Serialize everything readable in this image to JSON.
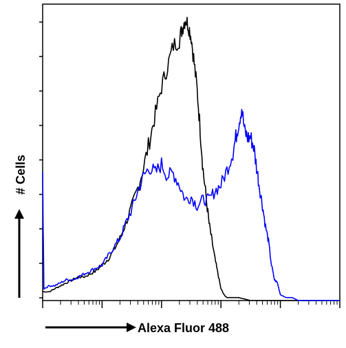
{
  "chart_data": {
    "type": "line",
    "title": "",
    "xlabel": "Alexa Fluor 488",
    "ylabel": "# Cells",
    "x_scale": "log",
    "xlim": [
      1,
      100000
    ],
    "ylim": [
      0,
      100
    ],
    "grid": false,
    "legend": "none",
    "series": [
      {
        "color": "#000000",
        "points": [
          [
            1.0,
            3
          ],
          [
            1.3,
            3
          ],
          [
            1.6,
            4
          ],
          [
            2.0,
            5
          ],
          [
            2.5,
            6
          ],
          [
            3.2,
            7
          ],
          [
            4.0,
            8
          ],
          [
            5.0,
            8
          ],
          [
            6.3,
            9
          ],
          [
            7.9,
            10
          ],
          [
            10,
            12
          ],
          [
            12.6,
            14
          ],
          [
            15.8,
            17
          ],
          [
            20,
            21
          ],
          [
            25,
            26
          ],
          [
            32,
            32
          ],
          [
            40,
            38
          ],
          [
            50,
            45
          ],
          [
            63,
            54
          ],
          [
            79,
            63
          ],
          [
            100,
            72
          ],
          [
            126,
            79
          ],
          [
            158,
            86
          ],
          [
            200,
            88
          ],
          [
            224,
            92
          ],
          [
            251,
            95
          ],
          [
            282,
            93
          ],
          [
            316,
            89
          ],
          [
            355,
            80
          ],
          [
            398,
            71
          ],
          [
            447,
            58
          ],
          [
            501,
            44
          ],
          [
            562,
            35
          ],
          [
            631,
            26
          ],
          [
            708,
            20
          ],
          [
            794,
            14
          ],
          [
            891,
            9
          ],
          [
            1000,
            4
          ],
          [
            1122,
            2
          ],
          [
            1259,
            1
          ],
          [
            1585,
            1
          ],
          [
            2000,
            1
          ],
          [
            3162,
            0
          ],
          [
            5000,
            0
          ],
          [
            10000,
            0
          ],
          [
            100000,
            0
          ]
        ]
      },
      {
        "color": "#0000ff",
        "points": [
          [
            1.0,
            41
          ],
          [
            1.05,
            4
          ],
          [
            1.3,
            5
          ],
          [
            1.6,
            5
          ],
          [
            2.0,
            6
          ],
          [
            2.5,
            7
          ],
          [
            3.2,
            7
          ],
          [
            4.0,
            8
          ],
          [
            5.0,
            9
          ],
          [
            6.3,
            10
          ],
          [
            7.9,
            11
          ],
          [
            10,
            12
          ],
          [
            12.6,
            15
          ],
          [
            15.8,
            18
          ],
          [
            20,
            21
          ],
          [
            25,
            26
          ],
          [
            32,
            31
          ],
          [
            40,
            37
          ],
          [
            50,
            42
          ],
          [
            63,
            45
          ],
          [
            79,
            43
          ],
          [
            100,
            46
          ],
          [
            126,
            42
          ],
          [
            158,
            43
          ],
          [
            200,
            39
          ],
          [
            251,
            34
          ],
          [
            316,
            35
          ],
          [
            398,
            32
          ],
          [
            501,
            34
          ],
          [
            631,
            34
          ],
          [
            794,
            37
          ],
          [
            1000,
            39
          ],
          [
            1259,
            44
          ],
          [
            1585,
            50
          ],
          [
            1778,
            55
          ],
          [
            2000,
            60
          ],
          [
            2239,
            65
          ],
          [
            2512,
            57
          ],
          [
            2818,
            55
          ],
          [
            3162,
            55
          ],
          [
            3548,
            52
          ],
          [
            3981,
            45
          ],
          [
            4467,
            38
          ],
          [
            5012,
            32
          ],
          [
            5623,
            25
          ],
          [
            6310,
            20
          ],
          [
            7079,
            12
          ],
          [
            7943,
            7
          ],
          [
            8913,
            6
          ],
          [
            10000,
            2
          ],
          [
            12589,
            1
          ],
          [
            15849,
            1
          ],
          [
            20000,
            0
          ],
          [
            31623,
            0
          ],
          [
            100000,
            0
          ]
        ]
      }
    ]
  }
}
